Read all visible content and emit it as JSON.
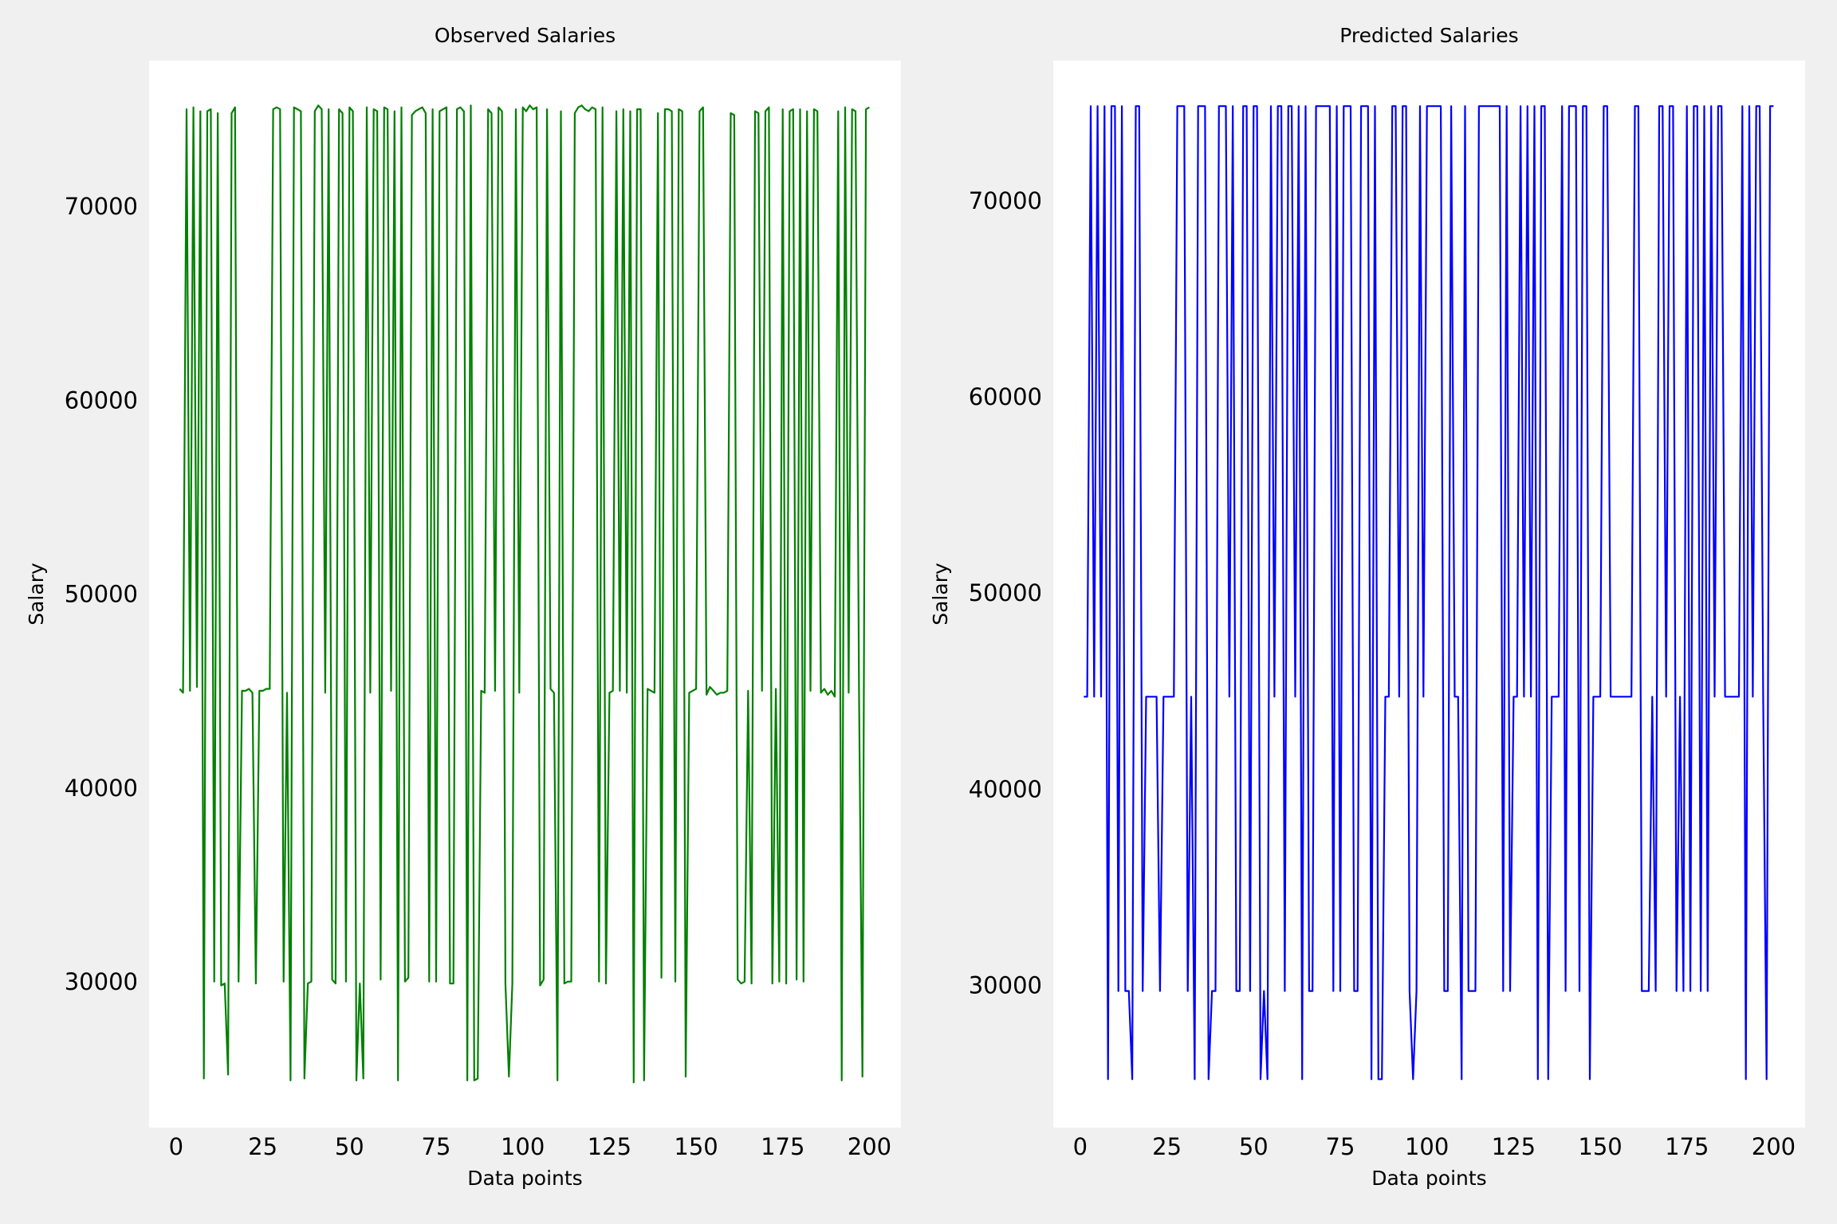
{
  "chart_data": [
    {
      "type": "line",
      "title": "Observed Salaries",
      "xlabel": "Data points",
      "ylabel": "Salary",
      "color": "#008000",
      "x": [
        1,
        2,
        3,
        4,
        5,
        6,
        7,
        8,
        9,
        10,
        11,
        12,
        13,
        14,
        15,
        16,
        17,
        18,
        19,
        20,
        21,
        22,
        23,
        24,
        25,
        26,
        27,
        28,
        29,
        30,
        31,
        32,
        33,
        34,
        35,
        36,
        37,
        38,
        39,
        40,
        41,
        42,
        43,
        44,
        45,
        46,
        47,
        48,
        49,
        50,
        51,
        52,
        53,
        54,
        55,
        56,
        57,
        58,
        59,
        60,
        61,
        62,
        63,
        64,
        65,
        66,
        67,
        68,
        69,
        70,
        71,
        72,
        73,
        74,
        75,
        76,
        77,
        78,
        79,
        80,
        81,
        82,
        83,
        84,
        85,
        86,
        87,
        88,
        89,
        90,
        91,
        92,
        93,
        94,
        95,
        96,
        97,
        98,
        99,
        100,
        101,
        102,
        103,
        104,
        105,
        106,
        107,
        108,
        109,
        110,
        111,
        112,
        113,
        114,
        115,
        116,
        117,
        118,
        119,
        120,
        121,
        122,
        123,
        124,
        125,
        126,
        127,
        128,
        129,
        130,
        131,
        132,
        133,
        134,
        135,
        136,
        137,
        138,
        139,
        140,
        141,
        142,
        143,
        144,
        145,
        146,
        147,
        148,
        149,
        150,
        151,
        152,
        153,
        154,
        155,
        156,
        157,
        158,
        159,
        160,
        161,
        162,
        163,
        164,
        165,
        166,
        167,
        168,
        169,
        170,
        171,
        172,
        173,
        174,
        175,
        176,
        177,
        178,
        179,
        180,
        181,
        182,
        183,
        184,
        185,
        186,
        187,
        188,
        189,
        190,
        191,
        192,
        193,
        194,
        195,
        196,
        197,
        198,
        199,
        200
      ],
      "values": [
        45200,
        45000,
        75100,
        45100,
        75200,
        45300,
        75000,
        25100,
        75000,
        75100,
        30100,
        74900,
        29900,
        30000,
        25300,
        74900,
        75200,
        30100,
        45100,
        45100,
        45200,
        45000,
        30000,
        45100,
        45100,
        45200,
        45200,
        75100,
        75200,
        75100,
        30100,
        45000,
        25000,
        75200,
        75100,
        75000,
        25100,
        30000,
        30100,
        75000,
        75300,
        75100,
        45000,
        75100,
        30200,
        30000,
        75100,
        74900,
        30100,
        75200,
        75000,
        25000,
        30000,
        25100,
        75200,
        45000,
        75100,
        75000,
        30200,
        75200,
        75100,
        45100,
        75000,
        25000,
        75200,
        30100,
        30300,
        74800,
        75000,
        75100,
        75200,
        74900,
        30100,
        75100,
        30100,
        75000,
        75100,
        75200,
        30000,
        30000,
        75100,
        75200,
        75000,
        25000,
        75300,
        25000,
        25100,
        45100,
        45000,
        75100,
        74900,
        45100,
        75200,
        75000,
        30000,
        25200,
        30000,
        75100,
        45000,
        75200,
        75000,
        75300,
        75100,
        75200,
        29900,
        30200,
        75100,
        45200,
        45000,
        25000,
        75000,
        30000,
        30100,
        30100,
        74900,
        75200,
        75300,
        75100,
        75000,
        75200,
        75100,
        30100,
        75200,
        30000,
        45000,
        45100,
        75000,
        45100,
        75100,
        45000,
        75000,
        24900,
        75100,
        75100,
        25000,
        45200,
        45100,
        45000,
        74900,
        30300,
        75100,
        75100,
        75000,
        30100,
        75100,
        75000,
        25200,
        45000,
        45100,
        45200,
        75000,
        75200,
        44900,
        45300,
        45100,
        44900,
        45000,
        45000,
        45100,
        74900,
        74800,
        30200,
        30000,
        30100,
        45100,
        30000,
        75000,
        74900,
        45100,
        75000,
        75200,
        30000,
        45200,
        30100,
        75100,
        30000,
        75000,
        75100,
        30200,
        75100,
        30100,
        75000,
        45100,
        75100,
        75000,
        45000,
        45200,
        44900,
        45100,
        44800,
        75000,
        25000,
        75200,
        45000,
        75100,
        75000,
        45100,
        25200,
        75100,
        75200
      ],
      "xlim": [
        -7.8,
        209.1
      ],
      "ylim": [
        22568,
        77613
      ],
      "xticks": [
        0,
        25,
        50,
        75,
        100,
        125,
        150,
        175,
        200
      ],
      "yticks": [
        30000,
        40000,
        50000,
        60000,
        70000
      ]
    },
    {
      "type": "line",
      "title": "Predicted Salaries",
      "xlabel": "Data points",
      "ylabel": "Salary",
      "color": "#0000ff",
      "x": [
        1,
        2,
        3,
        4,
        5,
        6,
        7,
        8,
        9,
        10,
        11,
        12,
        13,
        14,
        15,
        16,
        17,
        18,
        19,
        20,
        21,
        22,
        23,
        24,
        25,
        26,
        27,
        28,
        29,
        30,
        31,
        32,
        33,
        34,
        35,
        36,
        37,
        38,
        39,
        40,
        41,
        42,
        43,
        44,
        45,
        46,
        47,
        48,
        49,
        50,
        51,
        52,
        53,
        54,
        55,
        56,
        57,
        58,
        59,
        60,
        61,
        62,
        63,
        64,
        65,
        66,
        67,
        68,
        69,
        70,
        71,
        72,
        73,
        74,
        75,
        76,
        77,
        78,
        79,
        80,
        81,
        82,
        83,
        84,
        85,
        86,
        87,
        88,
        89,
        90,
        91,
        92,
        93,
        94,
        95,
        96,
        97,
        98,
        99,
        100,
        101,
        102,
        103,
        104,
        105,
        106,
        107,
        108,
        109,
        110,
        111,
        112,
        113,
        114,
        115,
        116,
        117,
        118,
        119,
        120,
        121,
        122,
        123,
        124,
        125,
        126,
        127,
        128,
        129,
        130,
        131,
        132,
        133,
        134,
        135,
        136,
        137,
        138,
        139,
        140,
        141,
        142,
        143,
        144,
        145,
        146,
        147,
        148,
        149,
        150,
        151,
        152,
        153,
        154,
        155,
        156,
        157,
        158,
        159,
        160,
        161,
        162,
        163,
        164,
        165,
        166,
        167,
        168,
        169,
        170,
        171,
        172,
        173,
        174,
        175,
        176,
        177,
        178,
        179,
        180,
        181,
        182,
        183,
        184,
        185,
        186,
        187,
        188,
        189,
        190,
        191,
        192,
        193,
        194,
        195,
        196,
        197,
        198,
        199,
        200
      ],
      "values": [
        44800,
        44800,
        74900,
        44800,
        74900,
        44800,
        74900,
        25300,
        74900,
        74900,
        29800,
        74900,
        29800,
        29800,
        25300,
        74900,
        74900,
        29800,
        44800,
        44800,
        44800,
        44800,
        29800,
        44800,
        44800,
        44800,
        44800,
        74900,
        74900,
        74900,
        29800,
        44800,
        25300,
        74900,
        74900,
        74900,
        25300,
        29800,
        29800,
        74900,
        74900,
        74900,
        44800,
        74900,
        29800,
        29800,
        74900,
        74900,
        29800,
        74900,
        74900,
        25300,
        29800,
        25300,
        74900,
        44800,
        74900,
        74900,
        29800,
        74900,
        74900,
        44800,
        74900,
        25300,
        74900,
        29800,
        29800,
        74900,
        74900,
        74900,
        74900,
        74900,
        29800,
        74900,
        29800,
        74900,
        74900,
        74900,
        29800,
        29800,
        74900,
        74900,
        74900,
        25300,
        74900,
        25300,
        25300,
        44800,
        44800,
        74900,
        74900,
        44800,
        74900,
        74900,
        29800,
        25300,
        29800,
        74900,
        44800,
        74900,
        74900,
        74900,
        74900,
        74900,
        29800,
        29800,
        74900,
        44800,
        44800,
        25300,
        74900,
        29800,
        29800,
        29800,
        74900,
        74900,
        74900,
        74900,
        74900,
        74900,
        74900,
        29800,
        74900,
        29800,
        44800,
        44800,
        74900,
        44800,
        74900,
        44800,
        74900,
        25300,
        74900,
        74900,
        25300,
        44800,
        44800,
        44800,
        74900,
        29800,
        74900,
        74900,
        74900,
        29800,
        74900,
        74900,
        25300,
        44800,
        44800,
        44800,
        74900,
        74900,
        44800,
        44800,
        44800,
        44800,
        44800,
        44800,
        44800,
        74900,
        74900,
        29800,
        29800,
        29800,
        44800,
        29800,
        74900,
        74900,
        44800,
        74900,
        74900,
        29800,
        44800,
        29800,
        74900,
        29800,
        74900,
        74900,
        29800,
        74900,
        29800,
        74900,
        44800,
        74900,
        74900,
        44800,
        44800,
        44800,
        44800,
        44800,
        74900,
        25300,
        74900,
        44800,
        74900,
        74900,
        44800,
        25300,
        74900,
        74900
      ],
      "xlim": [
        -7.8,
        209.1
      ],
      "ylim": [
        22836,
        77224
      ],
      "xticks": [
        0,
        25,
        50,
        75,
        100,
        125,
        150,
        175,
        200
      ],
      "yticks": [
        30000,
        40000,
        50000,
        60000,
        70000
      ]
    }
  ]
}
